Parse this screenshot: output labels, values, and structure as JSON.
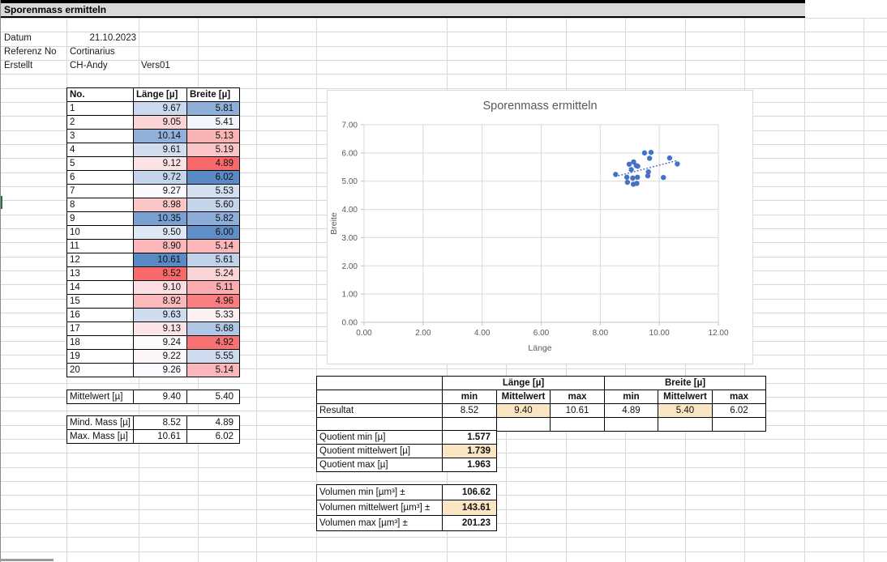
{
  "sheet": {
    "title": "Sporenmass ermitteln",
    "meta": {
      "datum_label": "Datum",
      "datum_value": "21.10.2023",
      "referenz_label": "Referenz No",
      "referenz_value": "Cortinarius",
      "erstellt_label": "Erstellt",
      "erstellt_value": "CH-Andy",
      "version_value": "Vers01"
    }
  },
  "measurements": {
    "columns": [
      "No.",
      "Länge  [µ]",
      "Breite [µ]"
    ],
    "rows": [
      [
        1,
        9.67,
        5.81
      ],
      [
        2,
        9.05,
        5.41
      ],
      [
        3,
        10.14,
        5.13
      ],
      [
        4,
        9.61,
        5.19
      ],
      [
        5,
        9.12,
        4.89
      ],
      [
        6,
        9.72,
        6.02
      ],
      [
        7,
        9.27,
        5.53
      ],
      [
        8,
        8.98,
        5.6
      ],
      [
        9,
        10.35,
        5.82
      ],
      [
        10,
        9.5,
        6.0
      ],
      [
        11,
        8.9,
        5.14
      ],
      [
        12,
        10.61,
        5.61
      ],
      [
        13,
        8.52,
        5.24
      ],
      [
        14,
        9.1,
        5.11
      ],
      [
        15,
        8.92,
        4.96
      ],
      [
        16,
        9.63,
        5.33
      ],
      [
        17,
        9.13,
        5.68
      ],
      [
        18,
        9.24,
        4.92
      ],
      [
        19,
        9.22,
        5.55
      ],
      [
        20,
        9.26,
        5.14
      ]
    ],
    "mittelwert": {
      "label": "Mittelwert  [µ]",
      "laenge": "9.40",
      "breite": "5.40"
    },
    "mind_mass": {
      "label": "Mind. Mass  [µ]",
      "laenge": "8.52",
      "breite": "4.89"
    },
    "max_mass": {
      "label": "Max. Mass  [µ]",
      "laenge": "10.61",
      "breite": "6.02"
    }
  },
  "resultat": {
    "group_headers": [
      "Länge  [µ]",
      "Breite [µ]"
    ],
    "sub_headers": [
      "min",
      "Mittelwert",
      "max"
    ],
    "row_label": "Resultat",
    "values": [
      "8.52",
      "9.40",
      "10.61",
      "4.89",
      "5.40",
      "6.02"
    ]
  },
  "quotient": {
    "rows": [
      {
        "label": "Quotient min  [µ]",
        "value": "1.577"
      },
      {
        "label": "Quotient mittelwert [µ]",
        "value": "1.739"
      },
      {
        "label": "Quotient max  [µ]",
        "value": "1.963"
      }
    ]
  },
  "volumen": {
    "rows": [
      {
        "label": "Volumen min [µm³] ±",
        "value": "106.62"
      },
      {
        "label": "Volumen mittelwert [µm³] ±",
        "value": "143.61"
      },
      {
        "label": "Volumen max [µm³] ±",
        "value": "201.23"
      }
    ]
  },
  "chart_data": {
    "type": "scatter",
    "title": "Sporenmass ermitteln",
    "xlabel": "Länge",
    "ylabel": "Breite",
    "xlim": [
      0,
      12
    ],
    "ylim": [
      0,
      7
    ],
    "xtick_step": 2,
    "ytick_step": 1,
    "grid": true,
    "legend": "none",
    "marker_color": "#4472c4",
    "trendline": "linear-dotted",
    "points": [
      [
        9.67,
        5.81
      ],
      [
        9.05,
        5.41
      ],
      [
        10.14,
        5.13
      ],
      [
        9.61,
        5.19
      ],
      [
        9.12,
        4.89
      ],
      [
        9.72,
        6.02
      ],
      [
        9.27,
        5.53
      ],
      [
        8.98,
        5.6
      ],
      [
        10.35,
        5.82
      ],
      [
        9.5,
        6.0
      ],
      [
        8.9,
        5.14
      ],
      [
        10.61,
        5.61
      ],
      [
        8.52,
        5.24
      ],
      [
        9.1,
        5.11
      ],
      [
        8.92,
        4.96
      ],
      [
        9.63,
        5.33
      ],
      [
        9.13,
        5.68
      ],
      [
        9.24,
        4.92
      ],
      [
        9.22,
        5.55
      ],
      [
        9.26,
        5.14
      ]
    ]
  },
  "colors": {
    "scale_min": "#f8696b",
    "scale_mid": "#fcfcff",
    "scale_max": "#5a8ac6",
    "highlight": "#fbe6c3",
    "accent": "#4472c4",
    "title_bg": "#d9d9d9",
    "gridline": "#d8d8d8",
    "chart_grid": "#d9d9d9",
    "chart_axis": "#bfbfbf",
    "chart_text": "#595959"
  }
}
